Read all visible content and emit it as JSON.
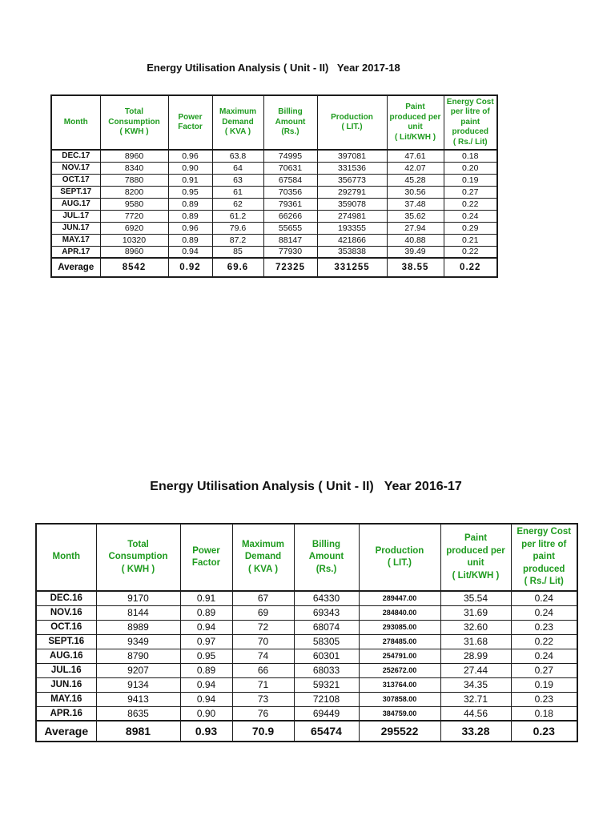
{
  "document": {
    "background": "#ffffff"
  },
  "styles": {
    "header_text_color": "#1f9b1f",
    "body_text_color": "#111111",
    "border_color": "#1c1c1c"
  },
  "tables": [
    {
      "title": "Energy Utilisation Analysis ( Unit - II)   Year 2017-18",
      "columns": [
        "Month",
        "Total\nConsumption\n( KWH )",
        "Power\nFactor",
        "Maximum\nDemand\n( KVA )",
        "Billing\nAmount\n(Rs.)",
        "Production\n( LIT.)",
        "Paint\nproduced per\nunit\n( Lit/KWH )",
        "Energy Cost\nper litre of\npaint\nproduced\n( Rs./ Lit)"
      ],
      "rows": [
        {
          "month": "DEC.17",
          "values": [
            "8960",
            "0.96",
            "63.8",
            "74995",
            "397081",
            "47.61",
            "0.18"
          ]
        },
        {
          "month": "NOV.17",
          "values": [
            "8340",
            "0.90",
            "64",
            "70631",
            "331536",
            "42.07",
            "0.20"
          ]
        },
        {
          "month": "OCT.17",
          "values": [
            "7880",
            "0.91",
            "63",
            "67584",
            "356773",
            "45.28",
            "0.19"
          ]
        },
        {
          "month": "SEPT.17",
          "values": [
            "8200",
            "0.95",
            "61",
            "70356",
            "292791",
            "30.56",
            "0.27"
          ]
        },
        {
          "month": "AUG.17",
          "values": [
            "9580",
            "0.89",
            "62",
            "79361",
            "359078",
            "37.48",
            "0.22"
          ]
        },
        {
          "month": "JUL.17",
          "values": [
            "7720",
            "0.89",
            "61.2",
            "66266",
            "274981",
            "35.62",
            "0.24"
          ]
        },
        {
          "month": "JUN.17",
          "values": [
            "6920",
            "0.96",
            "79.6",
            "55655",
            "193355",
            "27.94",
            "0.29"
          ]
        },
        {
          "month": "MAY.17",
          "values": [
            "10320",
            "0.89",
            "87.2",
            "88147",
            "421866",
            "40.88",
            "0.21"
          ]
        },
        {
          "month": "APR.17",
          "values": [
            "8960",
            "0.94",
            "85",
            "77930",
            "353838",
            "39.49",
            "0.22"
          ]
        }
      ],
      "average": {
        "label": "Average",
        "values": [
          "8542",
          "0.92",
          "69.6",
          "72325",
          "331255",
          "38.55",
          "0.22"
        ]
      }
    },
    {
      "title": "Energy Utilisation Analysis ( Unit - II)   Year 2016-17",
      "columns": [
        "Month",
        "Total\nConsumption\n( KWH )",
        "Power\nFactor",
        "Maximum\nDemand\n( KVA )",
        "Billing\nAmount\n(Rs.)",
        "Production\n( LIT.)",
        "Paint\nproduced per\nunit\n( Lit/KWH )",
        "Energy Cost\nper litre of\npaint\nproduced\n( Rs./ Lit)"
      ],
      "rows": [
        {
          "month": "DEC.16",
          "values": [
            "9170",
            "0.91",
            "67",
            "64330",
            "289447.00",
            "35.54",
            "0.24"
          ]
        },
        {
          "month": "NOV.16",
          "values": [
            "8144",
            "0.89",
            "69",
            "69343",
            "284840.00",
            "31.69",
            "0.24"
          ]
        },
        {
          "month": "OCT.16",
          "values": [
            "8989",
            "0.94",
            "72",
            "68074",
            "293085.00",
            "32.60",
            "0.23"
          ]
        },
        {
          "month": "SEPT.16",
          "values": [
            "9349",
            "0.97",
            "70",
            "58305",
            "278485.00",
            "31.68",
            "0.22"
          ]
        },
        {
          "month": "AUG.16",
          "values": [
            "8790",
            "0.95",
            "74",
            "60301",
            "254791.00",
            "28.99",
            "0.24"
          ]
        },
        {
          "month": "JUL.16",
          "values": [
            "9207",
            "0.89",
            "66",
            "68033",
            "252672.00",
            "27.44",
            "0.27"
          ]
        },
        {
          "month": "JUN.16",
          "values": [
            "9134",
            "0.94",
            "71",
            "59321",
            "313764.00",
            "34.35",
            "0.19"
          ]
        },
        {
          "month": "MAY.16",
          "values": [
            "9413",
            "0.94",
            "73",
            "72108",
            "307858.00",
            "32.71",
            "0.23"
          ]
        },
        {
          "month": "APR.16",
          "values": [
            "8635",
            "0.90",
            "76",
            "69449",
            "384759.00",
            "44.56",
            "0.18"
          ]
        }
      ],
      "average": {
        "label": "Average",
        "values": [
          "8981",
          "0.93",
          "70.9",
          "65474",
          "295522",
          "33.28",
          "0.23"
        ]
      }
    }
  ]
}
